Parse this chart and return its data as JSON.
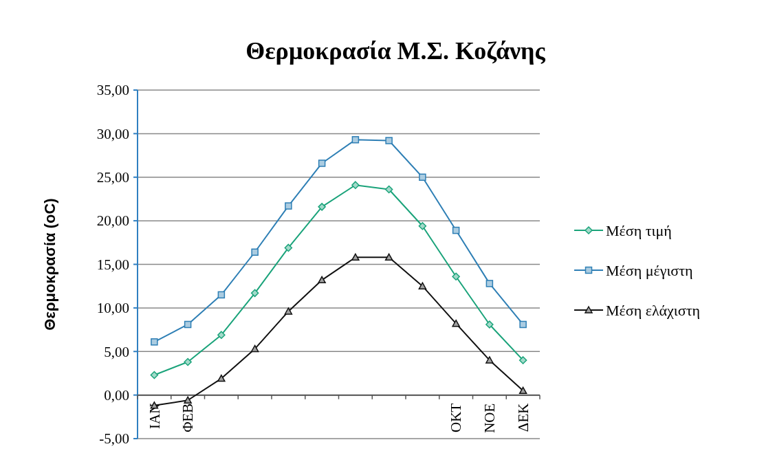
{
  "chart_data": {
    "type": "line",
    "title": "Θερμοκρασία Μ.Σ. Κοζάνης",
    "ylabel": "Θερμοκρασία  (oC)",
    "categories": [
      "ΙΑΝ",
      "ΦΕΒ",
      null,
      null,
      null,
      null,
      null,
      null,
      null,
      "ΟΚΤ",
      "ΝΟΕ",
      "ΔΕΚ"
    ],
    "series": [
      {
        "name": "Μέση τιμή",
        "color": "#1aa37a",
        "marker": "diamond",
        "values": [
          2.3,
          3.8,
          6.9,
          11.7,
          16.9,
          21.6,
          24.1,
          23.6,
          19.4,
          13.6,
          8.1,
          4.0
        ]
      },
      {
        "name": "Μέση μέγιστη",
        "color": "#2e7fb5",
        "marker": "square",
        "values": [
          6.1,
          8.1,
          11.5,
          16.4,
          21.7,
          26.6,
          29.3,
          29.2,
          25.0,
          18.9,
          12.8,
          8.1
        ]
      },
      {
        "name": "Μέση ελάχιστη",
        "color": "#111111",
        "marker": "triangle",
        "values": [
          -1.2,
          -0.6,
          1.9,
          5.3,
          9.6,
          13.2,
          15.8,
          15.8,
          12.5,
          8.2,
          4.0,
          0.5
        ]
      }
    ],
    "ylim": [
      -5,
      35
    ],
    "yticks": [
      {
        "value": -5,
        "label": "-5,00"
      },
      {
        "value": 0,
        "label": "0,00"
      },
      {
        "value": 5,
        "label": "5,00"
      },
      {
        "value": 10,
        "label": "10,00"
      },
      {
        "value": 15,
        "label": "15,00"
      },
      {
        "value": 20,
        "label": "20,00"
      },
      {
        "value": 25,
        "label": "25,00"
      },
      {
        "value": 30,
        "label": "30,00"
      },
      {
        "value": 35,
        "label": "35,00"
      }
    ],
    "grid": "y",
    "legend": "right",
    "line_style": "solid"
  }
}
